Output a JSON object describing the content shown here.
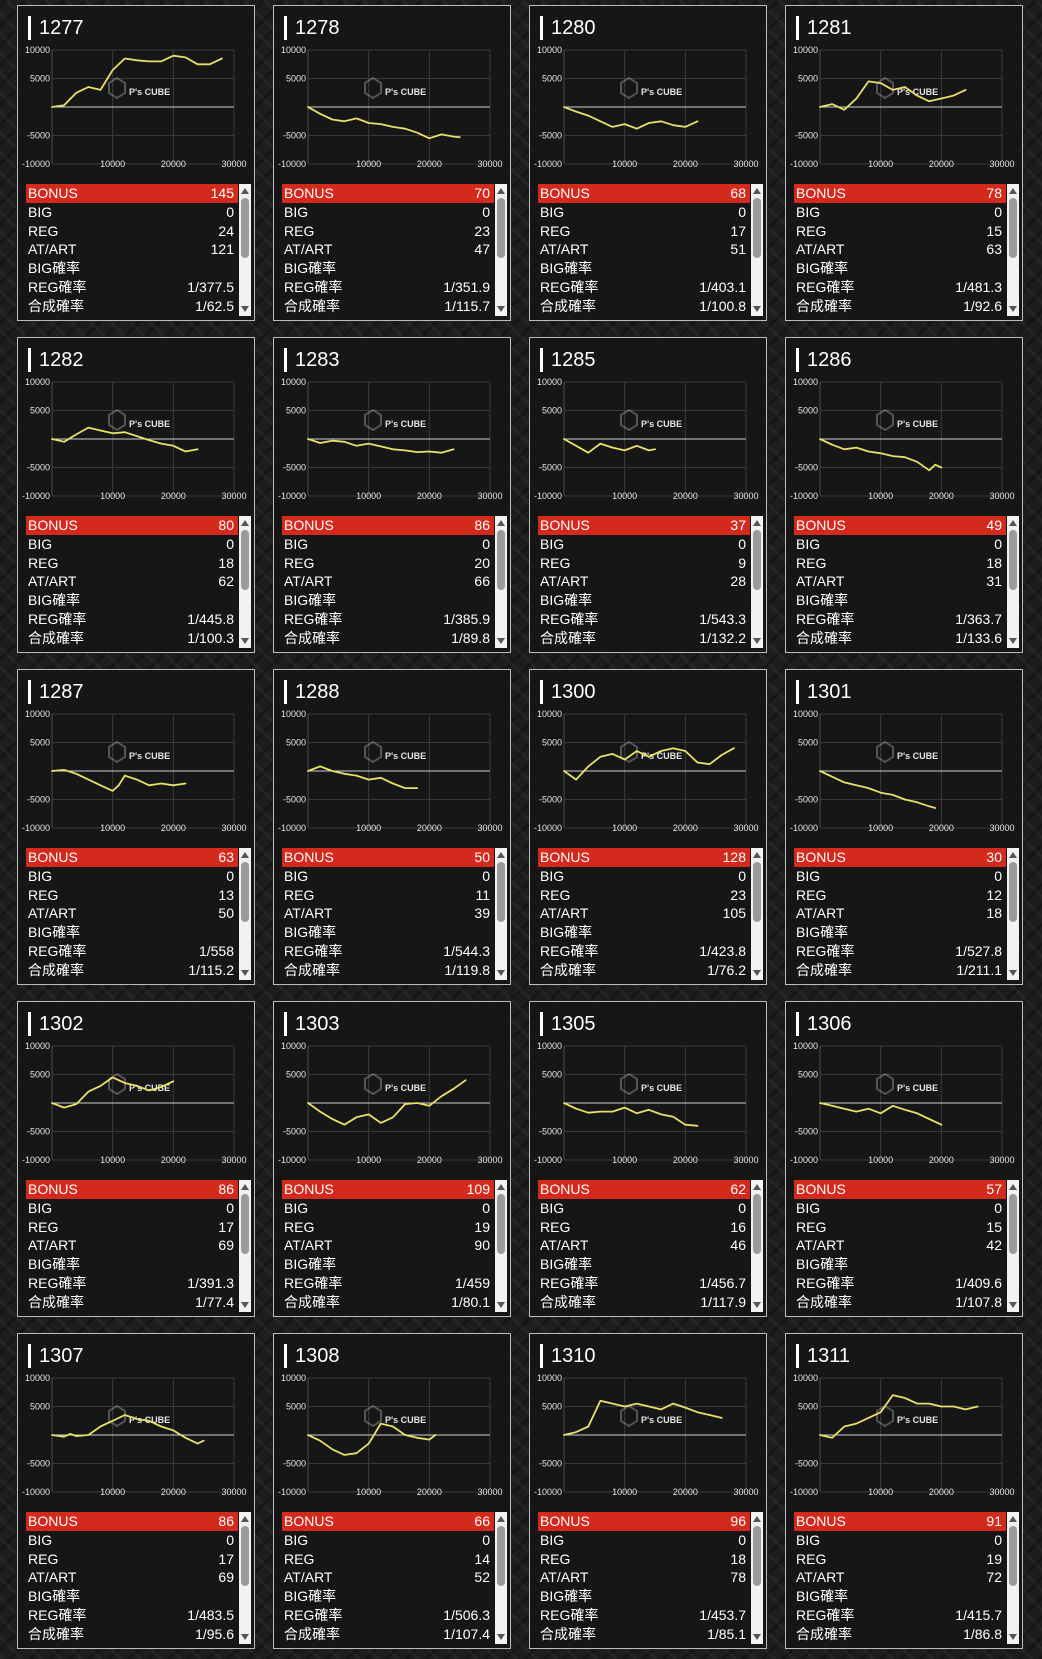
{
  "labels": {
    "bonus": "BONUS",
    "big": "BIG",
    "reg": "REG",
    "atart": "AT/ART",
    "big_rate": "BIG確率",
    "reg_rate": "REG確率",
    "total_rate": "合成確率"
  },
  "watermark": "P's CUBE",
  "colors": {
    "bonus_bar": "#d42a1e",
    "line": "#e8e06a",
    "card_bg": "#161616",
    "border": "#bdbdbd"
  },
  "chart_axes": {
    "y_ticks": [
      "10000",
      "5000",
      "-5000",
      "-10000"
    ],
    "x_ticks": [
      "10000",
      "20000",
      "30000"
    ],
    "xlim": [
      0,
      30000
    ],
    "ylim": [
      -10000,
      10000
    ]
  },
  "machines": [
    {
      "id": "1277",
      "bonus": "145",
      "big": "0",
      "reg": "24",
      "atart": "121",
      "big_rate": "",
      "reg_rate": "1/377.5",
      "total_rate": "1/62.5",
      "chart_data": {
        "type": "line",
        "x": [
          0,
          2000,
          4000,
          6000,
          8000,
          10000,
          12000,
          14000,
          16000,
          18000,
          20000,
          22000,
          24000,
          26000,
          28000
        ],
        "y": [
          0,
          300,
          2500,
          3500,
          3000,
          6500,
          8500,
          8200,
          8000,
          8000,
          9000,
          8700,
          7500,
          7500,
          8500
        ]
      }
    },
    {
      "id": "1278",
      "bonus": "70",
      "big": "0",
      "reg": "23",
      "atart": "47",
      "big_rate": "",
      "reg_rate": "1/351.9",
      "total_rate": "1/115.7",
      "chart_data": {
        "type": "line",
        "x": [
          0,
          2000,
          4000,
          6000,
          8000,
          10000,
          12000,
          14000,
          16000,
          18000,
          20000,
          22000,
          24000,
          25000
        ],
        "y": [
          0,
          -1200,
          -2200,
          -2500,
          -2000,
          -2800,
          -3000,
          -3500,
          -3800,
          -4500,
          -5500,
          -4800,
          -5200,
          -5300
        ]
      }
    },
    {
      "id": "1280",
      "bonus": "68",
      "big": "0",
      "reg": "17",
      "atart": "51",
      "big_rate": "",
      "reg_rate": "1/403.1",
      "total_rate": "1/100.8",
      "chart_data": {
        "type": "line",
        "x": [
          0,
          2000,
          4000,
          6000,
          8000,
          10000,
          12000,
          14000,
          16000,
          18000,
          20000,
          22000
        ],
        "y": [
          0,
          -800,
          -1500,
          -2500,
          -3500,
          -3000,
          -3800,
          -2800,
          -2500,
          -3200,
          -3500,
          -2500
        ]
      }
    },
    {
      "id": "1281",
      "bonus": "78",
      "big": "0",
      "reg": "15",
      "atart": "63",
      "big_rate": "",
      "reg_rate": "1/481.3",
      "total_rate": "1/92.6",
      "chart_data": {
        "type": "line",
        "x": [
          0,
          2000,
          4000,
          6000,
          8000,
          10000,
          12000,
          14000,
          16000,
          18000,
          20000,
          22000,
          24000
        ],
        "y": [
          0,
          500,
          -500,
          1500,
          4500,
          4200,
          3000,
          3500,
          2000,
          1000,
          1500,
          2000,
          3000
        ]
      }
    },
    {
      "id": "1282",
      "bonus": "80",
      "big": "0",
      "reg": "18",
      "atart": "62",
      "big_rate": "",
      "reg_rate": "1/445.8",
      "total_rate": "1/100.3",
      "chart_data": {
        "type": "line",
        "x": [
          0,
          2000,
          4000,
          6000,
          8000,
          10000,
          12000,
          14000,
          16000,
          18000,
          20000,
          22000,
          24000
        ],
        "y": [
          0,
          -500,
          800,
          2000,
          1500,
          1000,
          1200,
          500,
          -200,
          -800,
          -1200,
          -2200,
          -1800
        ]
      }
    },
    {
      "id": "1283",
      "bonus": "86",
      "big": "0",
      "reg": "20",
      "atart": "66",
      "big_rate": "",
      "reg_rate": "1/385.9",
      "total_rate": "1/89.8",
      "chart_data": {
        "type": "line",
        "x": [
          0,
          2000,
          4000,
          6000,
          8000,
          10000,
          12000,
          14000,
          16000,
          18000,
          20000,
          22000,
          24000
        ],
        "y": [
          0,
          -700,
          -300,
          -500,
          -1200,
          -800,
          -1300,
          -1800,
          -2000,
          -2300,
          -2200,
          -2400,
          -1800
        ]
      }
    },
    {
      "id": "1285",
      "bonus": "37",
      "big": "0",
      "reg": "9",
      "atart": "28",
      "big_rate": "",
      "reg_rate": "1/543.3",
      "total_rate": "1/132.2",
      "chart_data": {
        "type": "line",
        "x": [
          0,
          2000,
          4000,
          6000,
          8000,
          10000,
          12000,
          14000,
          15000
        ],
        "y": [
          0,
          -1200,
          -2400,
          -800,
          -1500,
          -2000,
          -1200,
          -2000,
          -1800
        ]
      }
    },
    {
      "id": "1286",
      "bonus": "49",
      "big": "0",
      "reg": "18",
      "atart": "31",
      "big_rate": "",
      "reg_rate": "1/363.7",
      "total_rate": "1/133.6",
      "chart_data": {
        "type": "line",
        "x": [
          0,
          2000,
          4000,
          6000,
          8000,
          10000,
          12000,
          14000,
          16000,
          18000,
          19000,
          20000
        ],
        "y": [
          0,
          -1000,
          -1800,
          -1500,
          -2200,
          -2500,
          -3000,
          -3200,
          -4000,
          -5500,
          -4500,
          -5000
        ]
      }
    },
    {
      "id": "1287",
      "bonus": "63",
      "big": "0",
      "reg": "13",
      "atart": "50",
      "big_rate": "",
      "reg_rate": "1/558",
      "total_rate": "1/115.2",
      "chart_data": {
        "type": "line",
        "x": [
          0,
          2000,
          4000,
          6000,
          8000,
          10000,
          11000,
          12000,
          14000,
          16000,
          18000,
          20000,
          22000
        ],
        "y": [
          0,
          200,
          -500,
          -1500,
          -2500,
          -3500,
          -2500,
          -800,
          -1500,
          -2500,
          -2200,
          -2500,
          -2200
        ]
      }
    },
    {
      "id": "1288",
      "bonus": "50",
      "big": "0",
      "reg": "11",
      "atart": "39",
      "big_rate": "",
      "reg_rate": "1/544.3",
      "total_rate": "1/119.8",
      "chart_data": {
        "type": "line",
        "x": [
          0,
          2000,
          4000,
          6000,
          8000,
          10000,
          12000,
          14000,
          16000,
          18000
        ],
        "y": [
          0,
          800,
          0,
          -500,
          -800,
          -1500,
          -1200,
          -2200,
          -3000,
          -3000
        ]
      }
    },
    {
      "id": "1300",
      "bonus": "128",
      "big": "0",
      "reg": "23",
      "atart": "105",
      "big_rate": "",
      "reg_rate": "1/423.8",
      "total_rate": "1/76.2",
      "chart_data": {
        "type": "line",
        "x": [
          0,
          2000,
          4000,
          6000,
          8000,
          10000,
          12000,
          14000,
          16000,
          18000,
          20000,
          22000,
          24000,
          26000,
          28000
        ],
        "y": [
          0,
          -1500,
          800,
          2500,
          3000,
          2000,
          3500,
          2500,
          3500,
          4000,
          3500,
          1500,
          1200,
          2800,
          4000
        ]
      }
    },
    {
      "id": "1301",
      "bonus": "30",
      "big": "0",
      "reg": "12",
      "atart": "18",
      "big_rate": "",
      "reg_rate": "1/527.8",
      "total_rate": "1/211.1",
      "chart_data": {
        "type": "line",
        "x": [
          0,
          2000,
          4000,
          6000,
          8000,
          10000,
          12000,
          14000,
          16000,
          18000,
          19000
        ],
        "y": [
          0,
          -1000,
          -2000,
          -2500,
          -3000,
          -3800,
          -4200,
          -5000,
          -5500,
          -6200,
          -6500
        ]
      }
    },
    {
      "id": "1302",
      "bonus": "86",
      "big": "0",
      "reg": "17",
      "atart": "69",
      "big_rate": "",
      "reg_rate": "1/391.3",
      "total_rate": "1/77.4",
      "chart_data": {
        "type": "line",
        "x": [
          0,
          2000,
          4000,
          6000,
          8000,
          10000,
          12000,
          14000,
          16000,
          18000,
          20000
        ],
        "y": [
          0,
          -800,
          -200,
          2000,
          3000,
          4500,
          3500,
          3000,
          2200,
          2800,
          3800
        ]
      }
    },
    {
      "id": "1303",
      "bonus": "109",
      "big": "0",
      "reg": "19",
      "atart": "90",
      "big_rate": "",
      "reg_rate": "1/459",
      "total_rate": "1/80.1",
      "chart_data": {
        "type": "line",
        "x": [
          0,
          2000,
          4000,
          6000,
          8000,
          10000,
          12000,
          14000,
          16000,
          18000,
          20000,
          22000,
          24000,
          26000
        ],
        "y": [
          0,
          -1500,
          -2800,
          -3800,
          -2500,
          -2000,
          -3500,
          -2500,
          -200,
          0,
          -500,
          1200,
          2500,
          4000
        ]
      }
    },
    {
      "id": "1305",
      "bonus": "62",
      "big": "0",
      "reg": "16",
      "atart": "46",
      "big_rate": "",
      "reg_rate": "1/456.7",
      "total_rate": "1/117.9",
      "chart_data": {
        "type": "line",
        "x": [
          0,
          2000,
          4000,
          6000,
          8000,
          10000,
          12000,
          14000,
          16000,
          18000,
          20000,
          22000
        ],
        "y": [
          0,
          -1000,
          -1700,
          -1500,
          -1500,
          -800,
          -1800,
          -1200,
          -2000,
          -2400,
          -3800,
          -4000
        ]
      }
    },
    {
      "id": "1306",
      "bonus": "57",
      "big": "0",
      "reg": "15",
      "atart": "42",
      "big_rate": "",
      "reg_rate": "1/409.6",
      "total_rate": "1/107.8",
      "chart_data": {
        "type": "line",
        "x": [
          0,
          2000,
          4000,
          6000,
          8000,
          10000,
          12000,
          14000,
          16000,
          18000,
          20000
        ],
        "y": [
          0,
          -500,
          -1000,
          -1500,
          -1000,
          -1800,
          -500,
          -1200,
          -1800,
          -2800,
          -3800
        ]
      }
    },
    {
      "id": "1307",
      "bonus": "86",
      "big": "0",
      "reg": "17",
      "atart": "69",
      "big_rate": "",
      "reg_rate": "1/483.5",
      "total_rate": "1/95.6",
      "chart_data": {
        "type": "line",
        "x": [
          0,
          2000,
          3000,
          4000,
          6000,
          8000,
          10000,
          12000,
          14000,
          16000,
          18000,
          20000,
          22000,
          24000,
          25000
        ],
        "y": [
          0,
          -300,
          200,
          -200,
          0,
          1500,
          2500,
          3500,
          2800,
          2500,
          1500,
          800,
          -500,
          -1500,
          -1000
        ]
      }
    },
    {
      "id": "1308",
      "bonus": "66",
      "big": "0",
      "reg": "14",
      "atart": "52",
      "big_rate": "",
      "reg_rate": "1/506.3",
      "total_rate": "1/107.4",
      "chart_data": {
        "type": "line",
        "x": [
          0,
          2000,
          4000,
          6000,
          8000,
          10000,
          12000,
          14000,
          16000,
          18000,
          20000,
          21000
        ],
        "y": [
          0,
          -1000,
          -2500,
          -3500,
          -3200,
          -1500,
          2000,
          1500,
          0,
          -500,
          -800,
          0
        ]
      }
    },
    {
      "id": "1310",
      "bonus": "96",
      "big": "0",
      "reg": "18",
      "atart": "78",
      "big_rate": "",
      "reg_rate": "1/453.7",
      "total_rate": "1/85.1",
      "chart_data": {
        "type": "line",
        "x": [
          0,
          2000,
          4000,
          6000,
          8000,
          10000,
          12000,
          14000,
          16000,
          18000,
          20000,
          22000,
          24000,
          26000
        ],
        "y": [
          0,
          500,
          1500,
          6000,
          5500,
          5000,
          5500,
          5000,
          4500,
          5500,
          4800,
          4000,
          3500,
          3000
        ]
      }
    },
    {
      "id": "1311",
      "bonus": "91",
      "big": "0",
      "reg": "19",
      "atart": "72",
      "big_rate": "",
      "reg_rate": "1/415.7",
      "total_rate": "1/86.8",
      "chart_data": {
        "type": "line",
        "x": [
          0,
          2000,
          4000,
          6000,
          8000,
          10000,
          12000,
          14000,
          16000,
          18000,
          20000,
          22000,
          24000,
          26000
        ],
        "y": [
          0,
          -500,
          1500,
          2000,
          3000,
          4000,
          7000,
          6500,
          5500,
          5500,
          5000,
          5000,
          4500,
          5000
        ]
      }
    }
  ]
}
